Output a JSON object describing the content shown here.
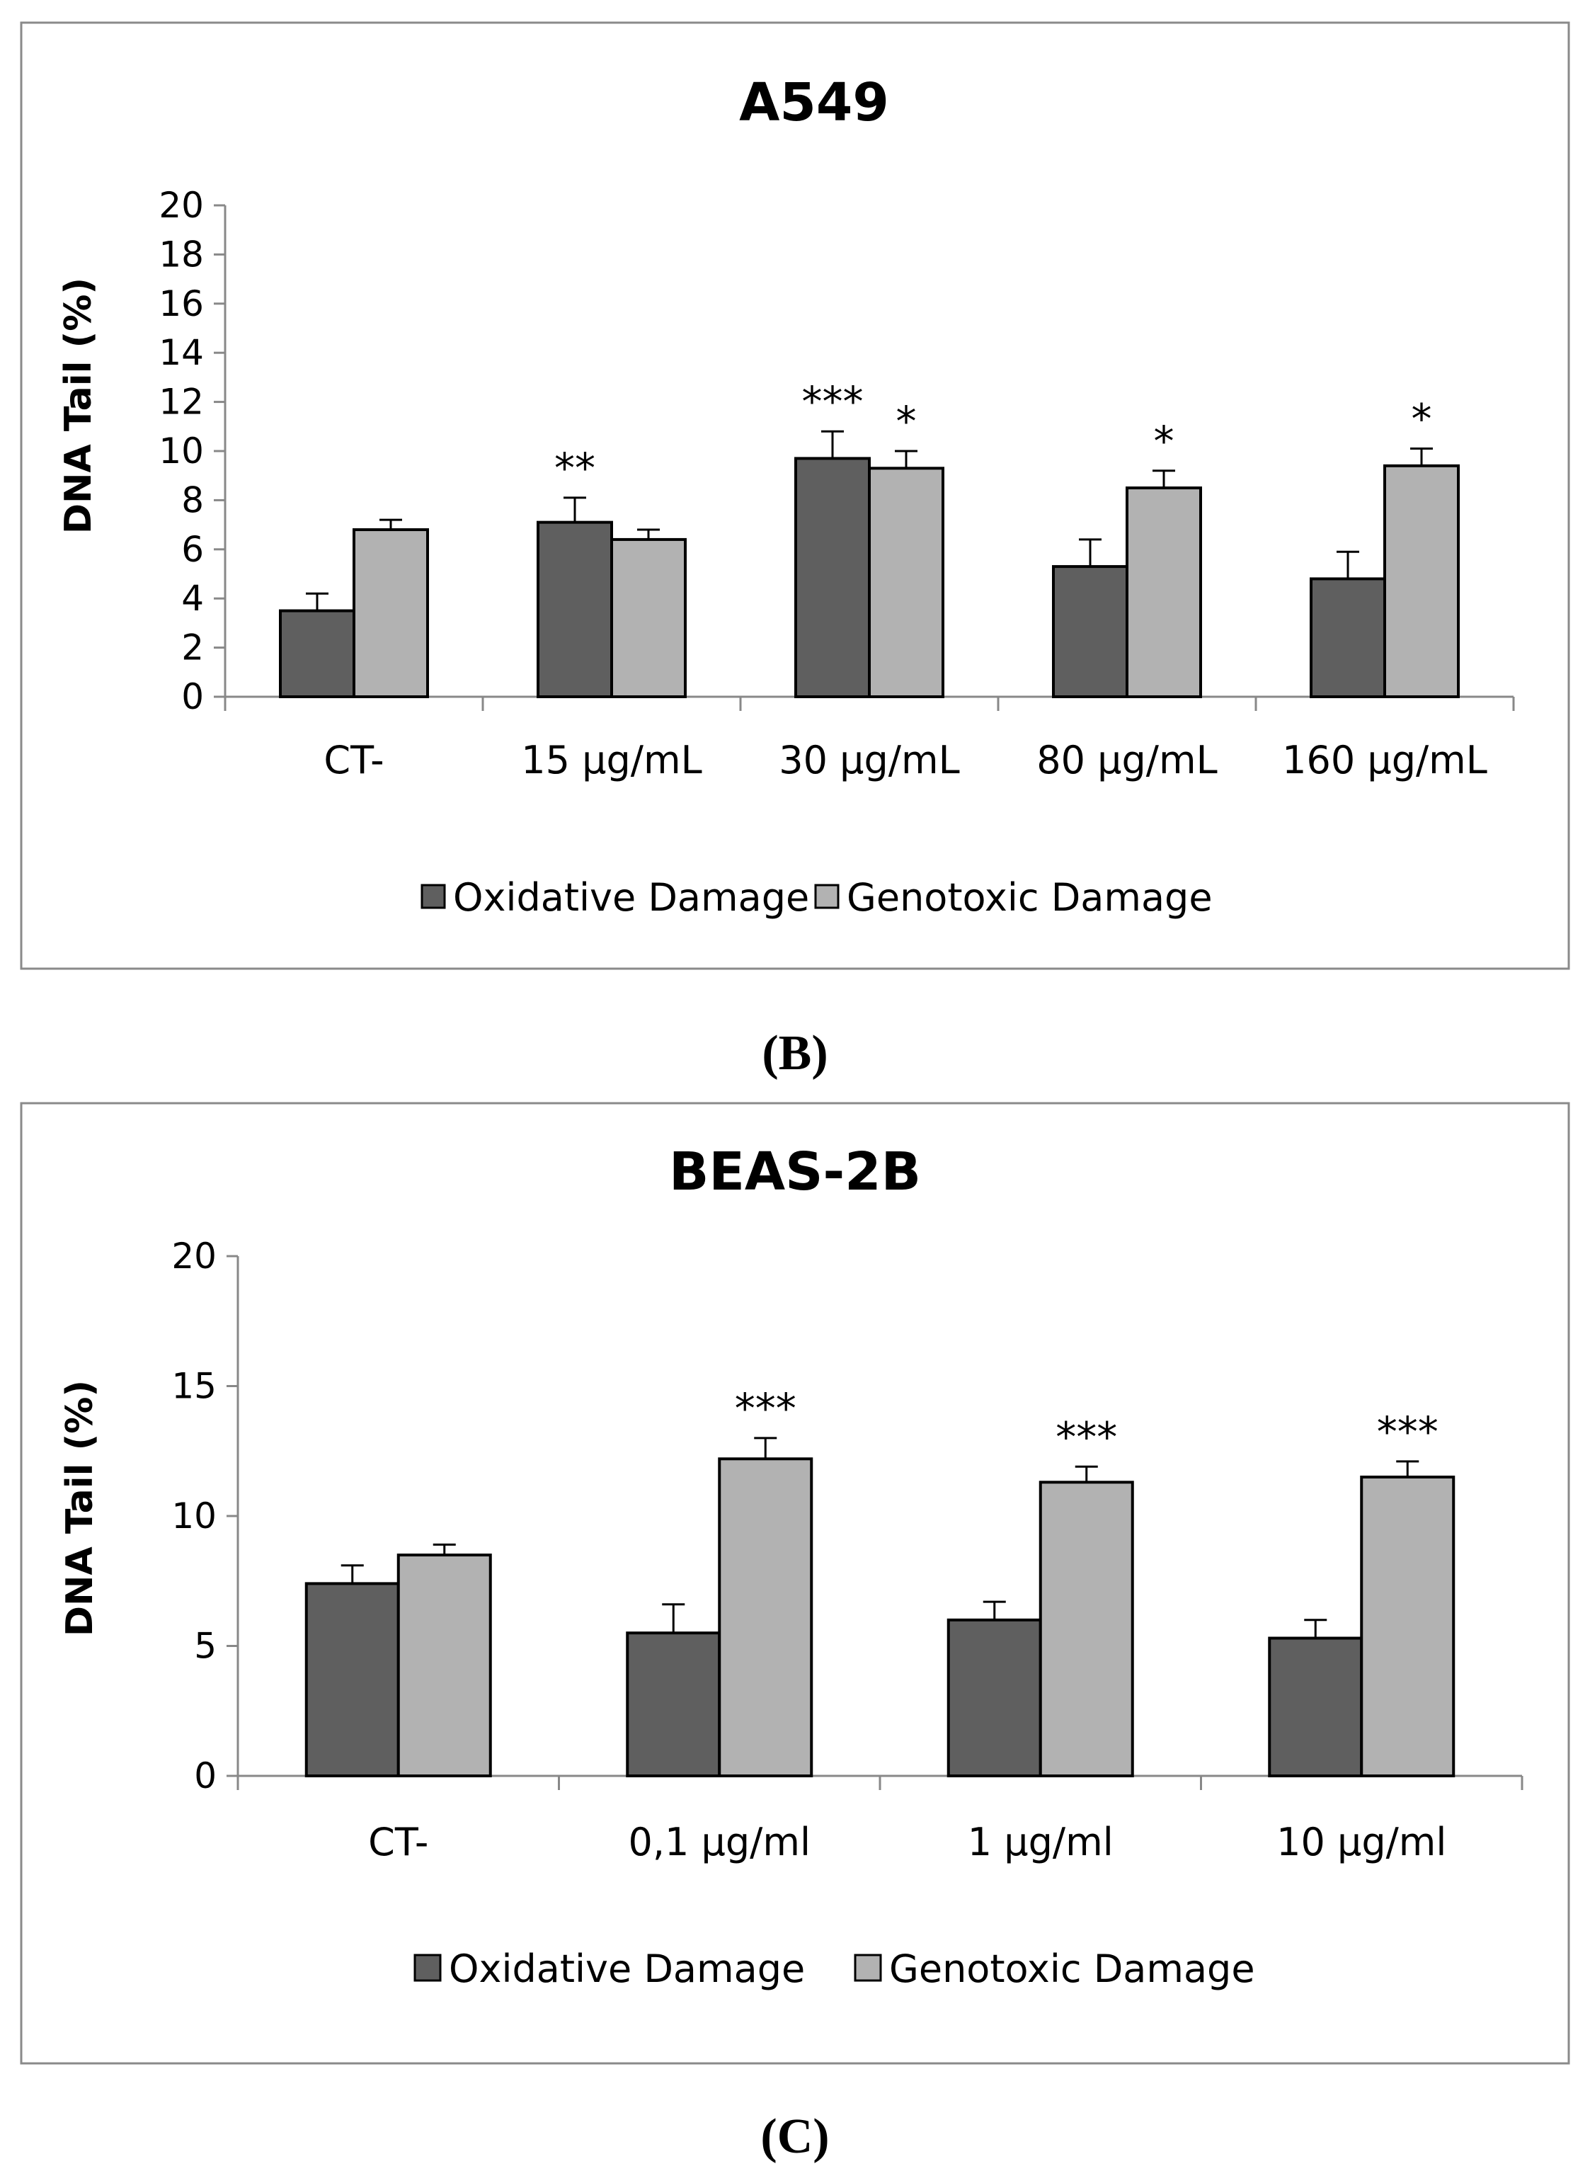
{
  "chart_data": [
    {
      "type": "bar",
      "title": "A549",
      "ylabel": "DNA Tail   (%)",
      "xlabel": "",
      "ylim": [
        0,
        20
      ],
      "yticks": [
        0,
        2,
        4,
        6,
        8,
        10,
        12,
        14,
        16,
        18,
        20
      ],
      "categories": [
        "CT-",
        "15 µg/mL",
        "30 µg/mL",
        "80 µg/mL",
        "160 µg/mL"
      ],
      "series": [
        {
          "name": "Oxidative Damage",
          "color": "#5f5f5f",
          "values": [
            3.5,
            7.1,
            9.7,
            5.3,
            4.8
          ],
          "errors": [
            0.7,
            1.0,
            1.1,
            1.1,
            1.1
          ],
          "significance": [
            "",
            "**",
            "***",
            "",
            ""
          ]
        },
        {
          "name": "Genotoxic Damage",
          "color": "#b2b2b2",
          "values": [
            6.8,
            6.4,
            9.3,
            8.5,
            9.4
          ],
          "errors": [
            0.4,
            0.4,
            0.7,
            0.7,
            0.7
          ],
          "significance": [
            "",
            "",
            "*",
            "*",
            "*"
          ]
        }
      ],
      "legend": "bottom",
      "panel_label": "(B)"
    },
    {
      "type": "bar",
      "title": "BEAS-2B",
      "ylabel": "DNA Tail (%)",
      "xlabel": "",
      "ylim": [
        0,
        20
      ],
      "yticks": [
        0,
        5,
        10,
        15,
        20
      ],
      "categories": [
        "CT-",
        "0,1 µg/ml",
        "1 µg/ml",
        "10 µg/ml"
      ],
      "series": [
        {
          "name": "Oxidative Damage",
          "color": "#5f5f5f",
          "values": [
            7.4,
            5.5,
            6.0,
            5.3
          ],
          "errors": [
            0.7,
            1.1,
            0.7,
            0.7
          ],
          "significance": [
            "",
            "",
            "",
            ""
          ]
        },
        {
          "name": "Genotoxic Damage",
          "color": "#b2b2b2",
          "values": [
            8.5,
            12.2,
            11.3,
            11.5
          ],
          "errors": [
            0.4,
            0.8,
            0.6,
            0.6
          ],
          "significance": [
            "",
            "***",
            "***",
            "***"
          ]
        }
      ],
      "legend": "bottom",
      "panel_label": "(C)"
    }
  ]
}
